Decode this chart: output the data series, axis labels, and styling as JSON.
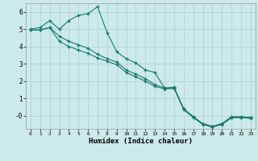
{
  "xlabel": "Humidex (Indice chaleur)",
  "bg_color": "#cceaea",
  "grid_color": "#aacfcf",
  "line_color": "#1a7a6e",
  "xlim": [
    -0.5,
    23.5
  ],
  "ylim": [
    -0.75,
    6.5
  ],
  "xticks": [
    0,
    1,
    2,
    3,
    4,
    5,
    6,
    7,
    8,
    9,
    10,
    11,
    12,
    13,
    14,
    15,
    16,
    17,
    18,
    19,
    20,
    21,
    22,
    23
  ],
  "yticks": [
    0,
    1,
    2,
    3,
    4,
    5,
    6
  ],
  "ytick_labels": [
    "-0",
    "1",
    "2",
    "3",
    "4",
    "5",
    "6"
  ],
  "line1_x": [
    0,
    1,
    2,
    3,
    4,
    5,
    6,
    7,
    8,
    9,
    10,
    11,
    12,
    13,
    14,
    15,
    16,
    17,
    18,
    19,
    20,
    21,
    22,
    23
  ],
  "line1_y": [
    5.0,
    5.1,
    5.5,
    5.0,
    5.5,
    5.8,
    5.9,
    6.3,
    4.8,
    3.7,
    3.3,
    3.05,
    2.65,
    2.5,
    1.6,
    1.65,
    0.4,
    -0.05,
    -0.45,
    -0.6,
    -0.45,
    -0.05,
    -0.05,
    -0.1
  ],
  "line2_x": [
    0,
    1,
    2,
    3,
    4,
    5,
    6,
    7,
    8,
    9,
    10,
    11,
    12,
    13,
    14,
    15,
    16,
    17,
    18,
    19,
    20,
    21,
    22,
    23
  ],
  "line2_y": [
    4.95,
    4.95,
    5.1,
    4.6,
    4.3,
    4.1,
    3.9,
    3.55,
    3.3,
    3.1,
    2.65,
    2.4,
    2.15,
    1.8,
    1.6,
    1.62,
    0.4,
    -0.05,
    -0.48,
    -0.62,
    -0.48,
    -0.08,
    -0.08,
    -0.12
  ],
  "line3_x": [
    0,
    1,
    2,
    3,
    4,
    5,
    6,
    7,
    8,
    9,
    10,
    11,
    12,
    13,
    14,
    15,
    16,
    17,
    18,
    19,
    20,
    21,
    22,
    23
  ],
  "line3_y": [
    4.95,
    4.95,
    5.1,
    4.3,
    4.0,
    3.8,
    3.6,
    3.35,
    3.15,
    2.95,
    2.5,
    2.25,
    2.0,
    1.7,
    1.55,
    1.58,
    0.35,
    -0.1,
    -0.5,
    -0.65,
    -0.5,
    -0.12,
    -0.1,
    -0.15
  ]
}
